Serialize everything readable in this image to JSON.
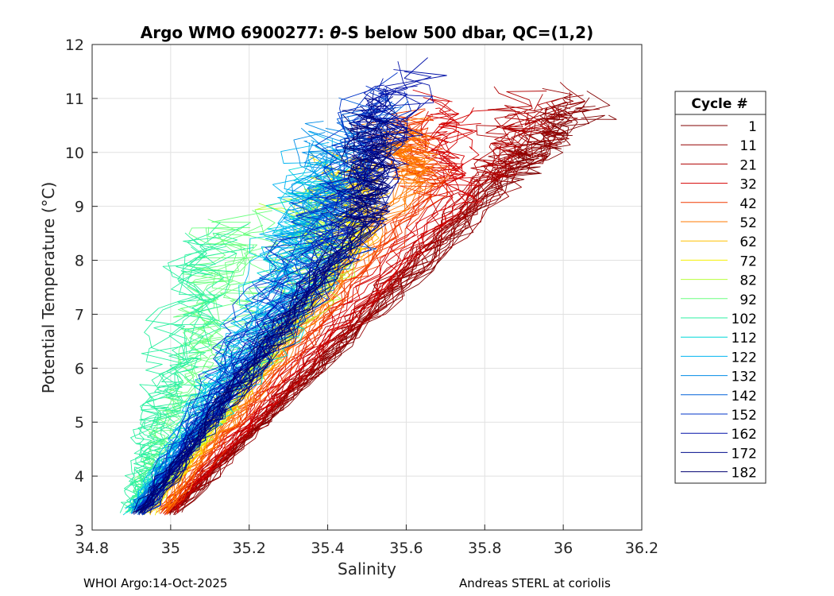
{
  "chart_data": {
    "type": "line",
    "title_prefix": "Argo WMO 6900277: ",
    "title_theta": "θ",
    "title_suffix": "-S below 500 dbar,  QC=(1,2)",
    "xlabel": "Salinity",
    "ylabel": "Potential Temperature (°C)",
    "xlim": [
      34.8,
      36.2
    ],
    "ylim": [
      3,
      12
    ],
    "xticks": [
      34.8,
      35,
      35.2,
      35.4,
      35.6,
      35.8,
      36,
      36.2
    ],
    "xtick_labels": [
      "34.8",
      "35",
      "35.2",
      "35.4",
      "35.6",
      "35.8",
      "36",
      "36.2"
    ],
    "yticks": [
      3,
      4,
      5,
      6,
      7,
      8,
      9,
      10,
      11,
      12
    ],
    "ytick_labels": [
      "3",
      "4",
      "5",
      "6",
      "7",
      "8",
      "9",
      "10",
      "11",
      "12"
    ],
    "grid": true,
    "legend": {
      "title": "Cycle #",
      "placement": "right-outside",
      "entries": [
        {
          "label": "1",
          "color": "#800000"
        },
        {
          "label": "11",
          "color": "#960000"
        },
        {
          "label": "21",
          "color": "#b00000"
        },
        {
          "label": "32",
          "color": "#d40000"
        },
        {
          "label": "42",
          "color": "#f03a00"
        },
        {
          "label": "52",
          "color": "#ff7a00"
        },
        {
          "label": "62",
          "color": "#ffc000"
        },
        {
          "label": "72",
          "color": "#f4f000"
        },
        {
          "label": "82",
          "color": "#b8ff3c"
        },
        {
          "label": "92",
          "color": "#6cff80"
        },
        {
          "label": "102",
          "color": "#2cf0a0"
        },
        {
          "label": "112",
          "color": "#00d8d8"
        },
        {
          "label": "122",
          "color": "#00b4f0"
        },
        {
          "label": "132",
          "color": "#008ce6"
        },
        {
          "label": "142",
          "color": "#0060d8"
        },
        {
          "label": "152",
          "color": "#0034c8"
        },
        {
          "label": "162",
          "color": "#0010a8"
        },
        {
          "label": "172",
          "color": "#000c8c"
        },
        {
          "label": "182",
          "color": "#000070"
        }
      ]
    },
    "series": [
      {
        "name": "1",
        "color": "#800000",
        "deep_s": 35.01,
        "knee_s": 35.86,
        "knee_t": 9.6,
        "top_s": 36.05,
        "top_t": 10.9
      },
      {
        "name": "11",
        "color": "#960000",
        "deep_s": 35.0,
        "knee_s": 35.84,
        "knee_t": 9.5,
        "top_s": 36.0,
        "top_t": 11.05
      },
      {
        "name": "21",
        "color": "#b00000",
        "deep_s": 35.0,
        "knee_s": 35.8,
        "knee_t": 9.4,
        "top_s": 35.9,
        "top_t": 10.95
      },
      {
        "name": "32",
        "color": "#d40000",
        "deep_s": 34.99,
        "knee_s": 35.72,
        "knee_t": 9.2,
        "top_s": 35.72,
        "top_t": 10.85
      },
      {
        "name": "42",
        "color": "#f03a00",
        "deep_s": 34.98,
        "knee_s": 35.66,
        "knee_t": 9.3,
        "top_s": 35.58,
        "top_t": 10.6
      },
      {
        "name": "52",
        "color": "#ff7a00",
        "deep_s": 34.97,
        "knee_s": 35.62,
        "knee_t": 9.5,
        "top_s": 35.55,
        "top_t": 10.4
      },
      {
        "name": "62",
        "color": "#ffc000",
        "deep_s": 34.95,
        "knee_s": 35.5,
        "knee_t": 8.6,
        "top_s": 35.46,
        "top_t": 9.9
      },
      {
        "name": "72",
        "color": "#f4f000",
        "deep_s": 34.94,
        "knee_s": 35.44,
        "knee_t": 8.2,
        "top_s": 35.4,
        "top_t": 9.6
      },
      {
        "name": "82",
        "color": "#b8ff3c",
        "deep_s": 34.93,
        "knee_s": 35.38,
        "knee_t": 7.8,
        "top_s": 35.34,
        "top_t": 9.2
      },
      {
        "name": "92",
        "color": "#6cff80",
        "deep_s": 34.91,
        "knee_s": 35.12,
        "knee_t": 6.6,
        "top_s": 35.18,
        "top_t": 8.7
      },
      {
        "name": "102",
        "color": "#2cf0a0",
        "deep_s": 34.9,
        "knee_s": 35.02,
        "knee_t": 5.8,
        "top_s": 35.1,
        "top_t": 8.4
      },
      {
        "name": "112",
        "color": "#00d8d8",
        "deep_s": 34.9,
        "knee_s": 35.26,
        "knee_t": 7.2,
        "top_s": 35.38,
        "top_t": 9.8
      },
      {
        "name": "122",
        "color": "#00b4f0",
        "deep_s": 34.91,
        "knee_s": 35.3,
        "knee_t": 7.5,
        "top_s": 35.42,
        "top_t": 10.1
      },
      {
        "name": "132",
        "color": "#008ce6",
        "deep_s": 34.92,
        "knee_s": 35.34,
        "knee_t": 7.8,
        "top_s": 35.44,
        "top_t": 10.4
      },
      {
        "name": "142",
        "color": "#0060d8",
        "deep_s": 34.92,
        "knee_s": 35.4,
        "knee_t": 8.2,
        "top_s": 35.5,
        "top_t": 10.8
      },
      {
        "name": "152",
        "color": "#0034c8",
        "deep_s": 34.93,
        "knee_s": 35.3,
        "knee_t": 7.6,
        "top_s": 35.56,
        "top_t": 11.2
      },
      {
        "name": "162",
        "color": "#0010a8",
        "deep_s": 34.93,
        "knee_s": 35.46,
        "knee_t": 8.6,
        "top_s": 35.6,
        "top_t": 11.5
      },
      {
        "name": "172",
        "color": "#000c8c",
        "deep_s": 34.93,
        "knee_s": 35.5,
        "knee_t": 8.8,
        "top_s": 35.54,
        "top_t": 10.9
      },
      {
        "name": "182",
        "color": "#000070",
        "deep_s": 34.92,
        "knee_s": 35.48,
        "knee_t": 8.7,
        "top_s": 35.52,
        "top_t": 10.6
      }
    ]
  },
  "footer": {
    "left": "WHOI Argo:14-Oct-2025",
    "right": "Andreas STERL at coriolis"
  }
}
